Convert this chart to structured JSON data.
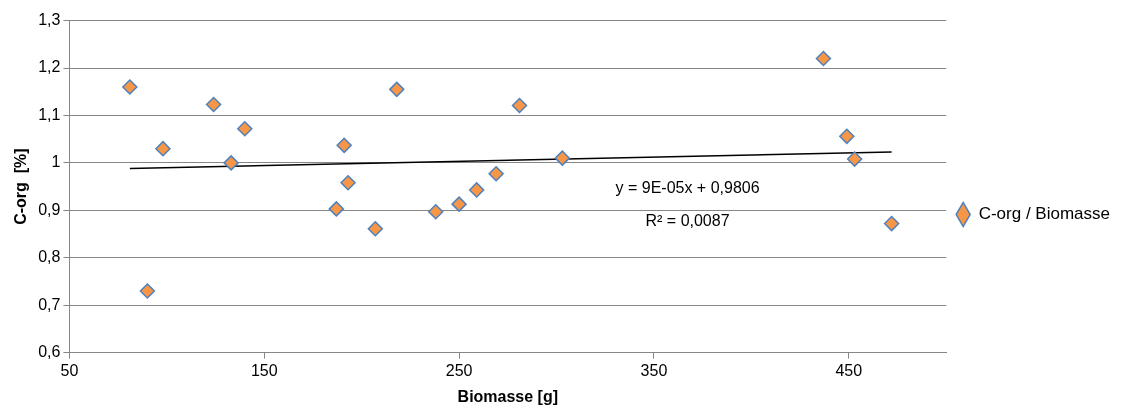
{
  "chart_data": {
    "type": "scatter",
    "xlabel": "Biomasse [g]",
    "ylabel": "C-org  [%]",
    "xlim": [
      50,
      500
    ],
    "xticks": [
      50,
      150,
      250,
      350,
      450
    ],
    "ylim": [
      0.6,
      1.3
    ],
    "yticks": [
      {
        "value": 0.6,
        "label": "0,6"
      },
      {
        "value": 0.7,
        "label": "0,7"
      },
      {
        "value": 0.8,
        "label": "0,8"
      },
      {
        "value": 0.9,
        "label": "0,9"
      },
      1,
      {
        "value": 1.1,
        "label": "1,1"
      },
      {
        "value": 1.2,
        "label": "1,2"
      },
      {
        "value": 1.3,
        "label": "1,3"
      }
    ],
    "grid": "y",
    "legend": "right",
    "marker": "diamond",
    "series": [
      {
        "name": "C-org / Biomasse",
        "color": "#f79646",
        "x": [
          81,
          90,
          98,
          124,
          133,
          140,
          187,
          191,
          193,
          207,
          218,
          238,
          250,
          259,
          269,
          281,
          303,
          437,
          449,
          453,
          472
        ],
        "values": [
          1.16,
          0.73,
          1.03,
          1.123,
          1.0,
          1.072,
          0.903,
          1.037,
          0.958,
          0.861,
          1.155,
          0.897,
          0.913,
          0.943,
          0.977,
          1.121,
          1.01,
          1.22,
          1.056,
          1.008,
          0.872
        ]
      },
      {
        "type": "line",
        "color": "#000000",
        "marker": "none",
        "x": [
          81,
          472
        ],
        "values": [
          0.988,
          1.023
        ]
      }
    ],
    "annotations": [
      "y = 9E-05x + 0,9806",
      "R² = 0,0087"
    ]
  }
}
